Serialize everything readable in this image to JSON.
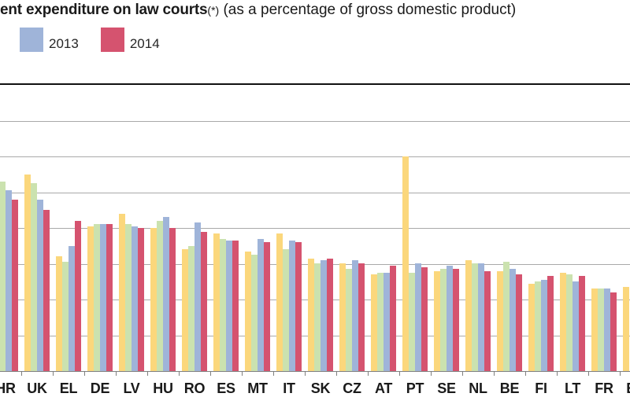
{
  "title": {
    "bold": "ent expenditure on law courts",
    "footnote_marker": "(*)",
    "subtitle": "(as a percentage of gross domestic product)"
  },
  "legend": [
    {
      "label": "2013",
      "color": "#9fb4d9"
    },
    {
      "label": "2014",
      "color": "#d5536f"
    }
  ],
  "chart_data": {
    "type": "bar",
    "title": "ent expenditure on law courts (*) (as a percentage of gross domestic product)",
    "xlabel": "",
    "ylabel": "",
    "ylim": [
      0,
      0.8
    ],
    "gridline_step": 0.1,
    "grid": true,
    "legend_position": "top-left",
    "axis_note": "y-axis tick labels and first/last country groups are cropped out of the screenshot; values estimated from gridlines",
    "clipped": {
      "left": true,
      "right": true
    },
    "categories": [
      "HR",
      "UK",
      "EL",
      "DE",
      "LV",
      "HU",
      "RO",
      "ES",
      "MT",
      "IT",
      "SK",
      "CZ",
      "AT",
      "PT",
      "SE",
      "NL",
      "BE",
      "FI",
      "LT",
      "FR",
      "EE"
    ],
    "series": [
      {
        "key": "yellow",
        "name": "",
        "color": "#fbd77c",
        "values": [
          null,
          0.55,
          0.32,
          0.405,
          0.44,
          0.4,
          0.34,
          0.385,
          0.335,
          0.385,
          0.315,
          0.3,
          0.27,
          0.6,
          0.28,
          0.31,
          0.28,
          0.245,
          0.275,
          0.23,
          0.235
        ]
      },
      {
        "key": "green",
        "name": "",
        "color": "#cbe2af",
        "values": [
          0.53,
          0.525,
          0.305,
          0.41,
          0.41,
          0.42,
          0.35,
          0.37,
          0.325,
          0.34,
          0.3,
          0.285,
          0.275,
          0.275,
          0.285,
          0.3,
          0.305,
          0.25,
          0.27,
          0.23,
          null
        ]
      },
      {
        "key": "blue",
        "name": "2013",
        "color": "#9fb4d9",
        "values": [
          0.505,
          0.48,
          0.35,
          0.41,
          0.405,
          0.43,
          0.415,
          0.365,
          0.37,
          0.365,
          0.31,
          0.31,
          0.275,
          0.3,
          0.295,
          0.3,
          0.285,
          0.255,
          0.25,
          0.23,
          null
        ]
      },
      {
        "key": "red",
        "name": "2014",
        "color": "#d5536f",
        "values": [
          0.48,
          0.45,
          0.42,
          0.41,
          0.4,
          0.4,
          0.39,
          0.365,
          0.36,
          0.36,
          0.315,
          0.3,
          0.295,
          0.29,
          0.285,
          0.28,
          0.27,
          0.265,
          0.265,
          0.22,
          null
        ]
      }
    ]
  },
  "colors": {
    "plot_top_border": "#111111",
    "gridline": "#a9a9a9",
    "axis_line": "#7f7f7f",
    "text": "#1a1a1a"
  }
}
